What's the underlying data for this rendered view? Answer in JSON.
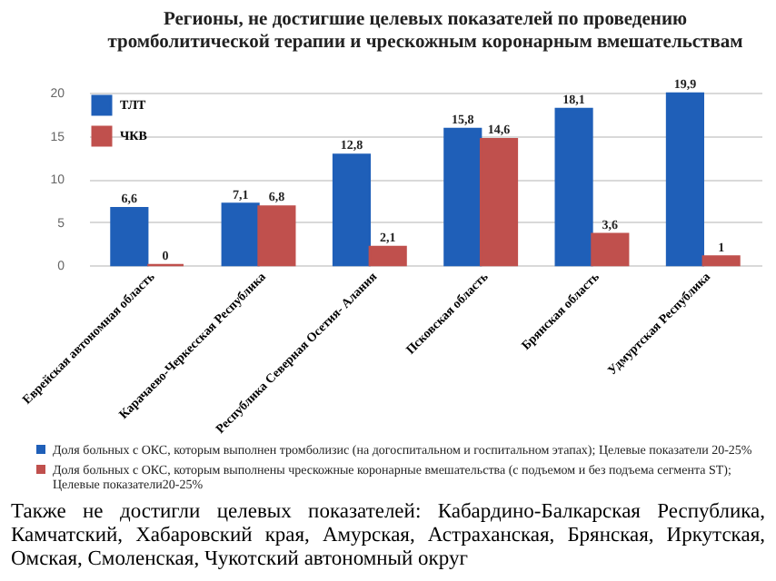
{
  "chart_data": {
    "type": "bar",
    "title": "Регионы, не достигшие целевых показателей по проведению тромболитической терапии и чрескожным коронарным вмешательствам",
    "categories": [
      "Еврейская автономная область",
      "Карачаево-Черкесская Республика",
      "Республика Северная Осетия- Алания",
      "Псковская область",
      "Брянская область",
      "Удмуртская Республика"
    ],
    "series": [
      {
        "name": "ТЛТ",
        "color": "#1f5fb8",
        "values": [
          6.6,
          7.1,
          12.8,
          15.8,
          18.1,
          19.9
        ],
        "value_labels": [
          "6,6",
          "7,1",
          "12,8",
          "15,8",
          "18,1",
          "19,9"
        ]
      },
      {
        "name": "ЧКВ",
        "color": "#c0504d",
        "values": [
          0,
          6.8,
          2.1,
          14.6,
          3.6,
          1
        ],
        "value_labels": [
          "0",
          "6,8",
          "2,1",
          "14,6",
          "3,6",
          "1"
        ]
      }
    ],
    "ylim": [
      0,
      20
    ],
    "yticks": [
      0,
      5,
      10,
      15,
      20
    ],
    "grid": "y",
    "legend": "top left",
    "annotations": [
      "Доля больных с ОКС, которым выполнен тромболизис (на догоспитальном и госпитальном этапах); Целевые показатели  20-25%",
      "Доля больных с ОКС, которым выполнены чрескожные коронарные вмешательства (с подъемом и без подъема сегмента ST); Целевые показатели20-25%",
      "Также не достигли целевых показателей: Кабардино-Балкарская Республика, Камчатский, Хабаровский края, Амурская, Астраханская, Брянская, Иркутская, Омская, Смоленская, Чукотский автономный округ"
    ]
  }
}
